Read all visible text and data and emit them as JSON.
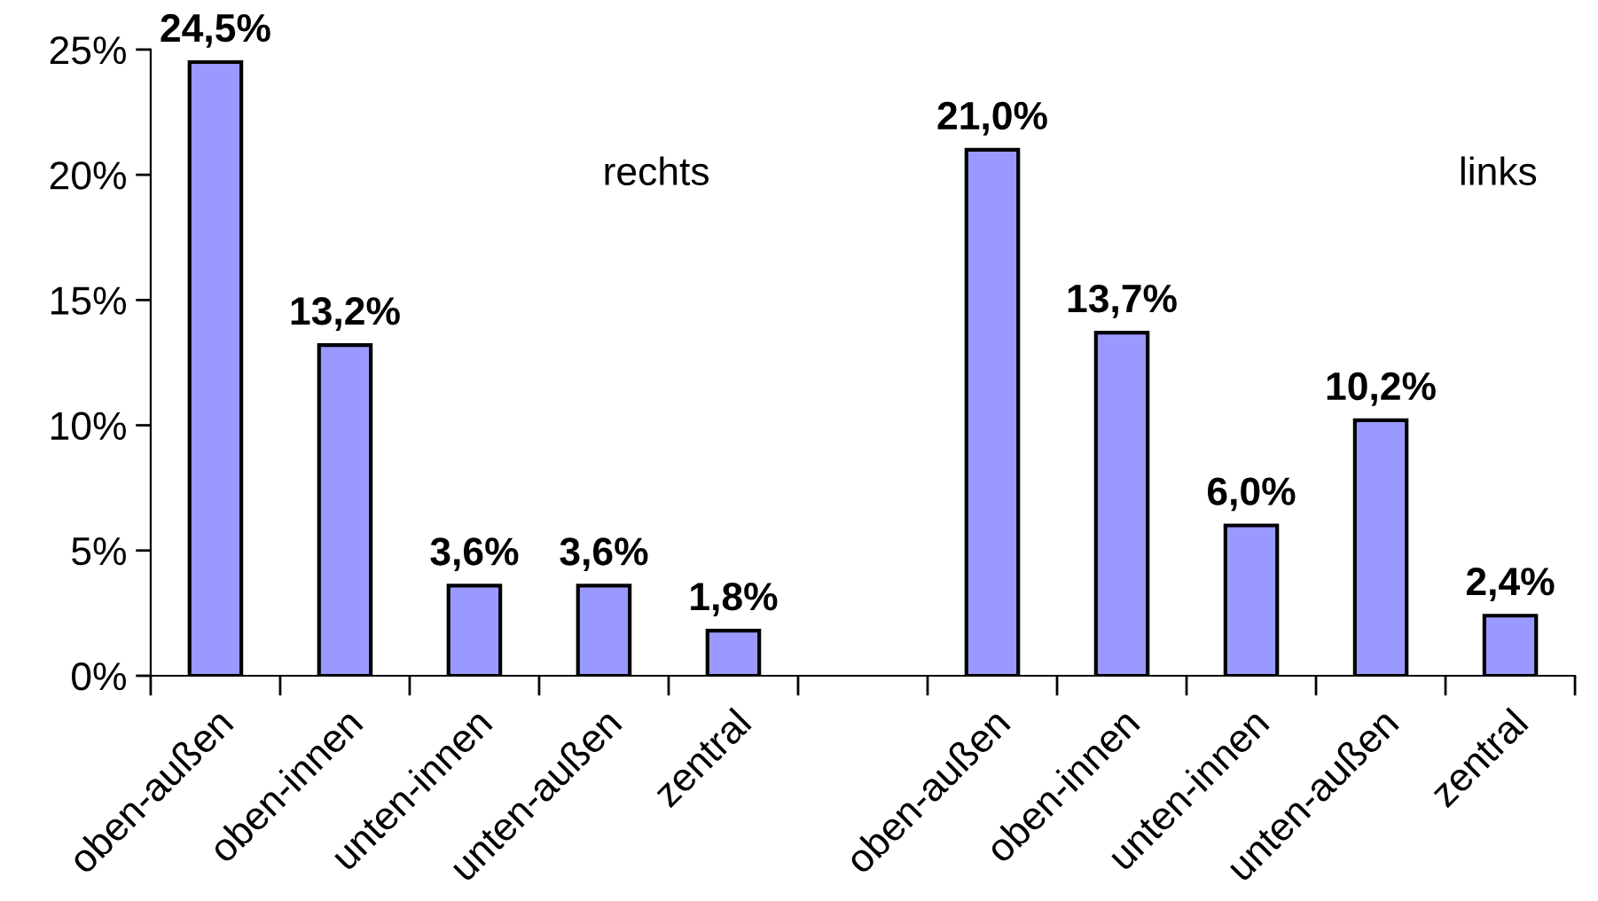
{
  "chart_data": {
    "type": "bar",
    "categories": [
      "oben-außen",
      "oben-innen",
      "unten-innen",
      "unten-außen",
      "zentral",
      null,
      "oben-außen",
      "oben-innen",
      "unten-innen",
      "unten-außen",
      "zentral"
    ],
    "values": [
      24.5,
      13.2,
      3.6,
      3.6,
      1.8,
      null,
      21.0,
      13.7,
      6.0,
      10.2,
      2.4
    ],
    "value_labels": [
      "24,5%",
      "13,2%",
      "3,6%",
      "3,6%",
      "1,8%",
      null,
      "21,0%",
      "13,7%",
      "6,0%",
      "10,2%",
      "2,4%"
    ],
    "color": "#9999ff",
    "ylim": [
      0,
      25
    ],
    "yticks": [
      {
        "value": 0,
        "label": "0%"
      },
      {
        "value": 5,
        "label": "5%"
      },
      {
        "value": 10,
        "label": "10%"
      },
      {
        "value": 15,
        "label": "15%"
      },
      {
        "value": 20,
        "label": "20%"
      },
      {
        "value": 25,
        "label": "25%"
      }
    ],
    "annotations": [
      "rechts",
      "links"
    ]
  }
}
